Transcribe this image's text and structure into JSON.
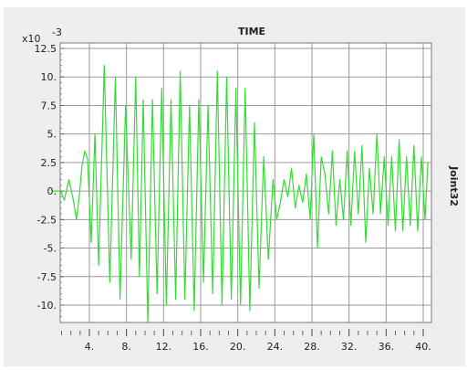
{
  "chart_data": {
    "type": "line",
    "title": "TIME",
    "ylabel_right": "Joint32",
    "y_multiplier": "x10",
    "y_exponent": "-3",
    "y_ticks": [
      {
        "value": 12.5,
        "label": "12.5"
      },
      {
        "value": 10,
        "label": "10."
      },
      {
        "value": 7.5,
        "label": "7.5"
      },
      {
        "value": 5,
        "label": "5."
      },
      {
        "value": 2.5,
        "label": "2.5"
      },
      {
        "value": 0,
        "label": "0."
      },
      {
        "value": -2.5,
        "label": "-2.5"
      },
      {
        "value": -5,
        "label": "-5."
      },
      {
        "value": -7.5,
        "label": "-7.5"
      },
      {
        "value": -10,
        "label": "-10."
      }
    ],
    "x_ticks": [
      {
        "value": 4,
        "label": "4."
      },
      {
        "value": 8,
        "label": "8."
      },
      {
        "value": 12,
        "label": "12."
      },
      {
        "value": 16,
        "label": "16."
      },
      {
        "value": 20,
        "label": "20."
      },
      {
        "value": 24,
        "label": "24."
      },
      {
        "value": 28,
        "label": "28."
      },
      {
        "value": 32,
        "label": "32."
      },
      {
        "value": 36,
        "label": "36."
      },
      {
        "value": 40,
        "label": "40."
      }
    ],
    "xlim": [
      0,
      40.5
    ],
    "ylim": [
      -12,
      13
    ],
    "grid": true,
    "colors": {
      "line": "#33dd33",
      "grid": "#9a9a9a",
      "background": "#ffffff",
      "panel": "#eeeeee"
    },
    "series": [
      {
        "x": [
          0,
          0.9,
          1.3,
          1.8,
          2.2,
          2.6,
          2.9,
          3.2,
          3.5,
          3.8,
          4.2,
          4.6,
          5.0,
          5.6,
          6.2,
          6.8,
          7.3,
          7.9,
          8.5,
          9.0,
          9.4,
          9.8,
          10.3,
          10.8,
          11.3,
          11.8,
          12.3,
          12.8,
          13.3,
          13.8,
          14.3,
          14.8,
          15.3,
          15.8,
          16.3,
          16.8,
          17.3,
          17.8,
          18.3,
          18.8,
          19.3,
          19.8,
          20.3,
          20.8,
          21.3,
          21.8,
          22.3,
          22.8,
          23.3,
          23.8,
          24.2,
          24.6,
          25.0,
          25.4,
          25.8,
          26.2,
          26.6,
          27.0,
          27.4,
          27.8,
          28.2,
          28.6,
          29.0,
          29.4,
          29.8,
          30.2,
          30.6,
          31.0,
          31.4,
          31.8,
          32.2,
          32.6,
          33.0,
          33.4,
          33.8,
          34.2,
          34.6,
          35.0,
          35.4,
          35.8,
          36.2,
          36.6,
          37.0,
          37.4,
          37.8,
          38.2,
          38.6,
          39.0,
          39.4,
          39.8,
          40.2,
          40.5
        ],
        "values": [
          0,
          0,
          -0.8,
          1.0,
          -0.5,
          -2.5,
          -0.5,
          2.2,
          3.5,
          2.8,
          -4.5,
          5.0,
          -6.5,
          11.0,
          -8.0,
          10.0,
          -9.5,
          7.5,
          -6.0,
          10.0,
          -7.5,
          8.0,
          -11.5,
          8.0,
          -9.0,
          9.0,
          -10.0,
          8.0,
          -9.5,
          10.5,
          -9.5,
          7.5,
          -10.5,
          8.0,
          -8.0,
          7.5,
          -9.0,
          10.5,
          -10.0,
          10.0,
          -9.5,
          9.0,
          -10.0,
          9.0,
          -10.5,
          6.0,
          -8.5,
          3.0,
          -6.0,
          1.0,
          -2.5,
          -1.0,
          1.0,
          -0.5,
          2.0,
          -1.5,
          0.5,
          -1.0,
          1.5,
          -2.5,
          5.0,
          -5.0,
          3.0,
          1.5,
          -2.0,
          3.5,
          -3.0,
          1.0,
          -2.5,
          3.5,
          -3.0,
          3.5,
          -2.0,
          4.0,
          -4.5,
          2.0,
          -2.0,
          5.0,
          -2.0,
          3.0,
          -3.0,
          3.0,
          -3.5,
          4.5,
          -3.5,
          3.0,
          -3.0,
          4.0,
          -3.5,
          3.0,
          -2.5,
          2.5
        ]
      }
    ]
  }
}
